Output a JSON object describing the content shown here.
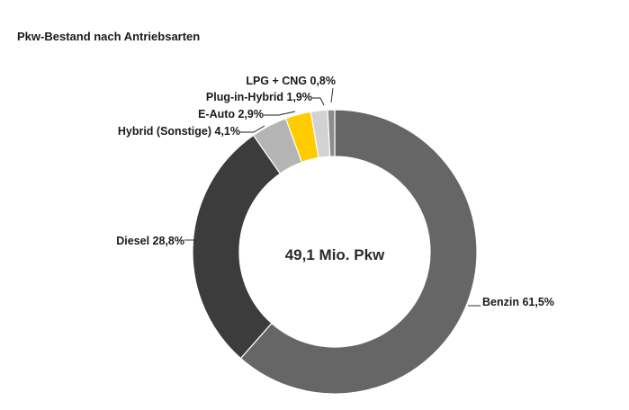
{
  "chart_data": {
    "type": "pie",
    "title": "Pkw-Bestand nach Antriebsarten",
    "center_label": "49,1 Mio. Pkw",
    "series": [
      {
        "name": "Benzin",
        "value": 61.5,
        "label": "Benzin 61,5%",
        "color": "#666666"
      },
      {
        "name": "Diesel",
        "value": 28.8,
        "label": "Diesel 28,8%",
        "color": "#3c3c3c"
      },
      {
        "name": "Hybrid (Sonstige)",
        "value": 4.1,
        "label": "Hybrid (Sonstige) 4,1%",
        "color": "#b4b4b4"
      },
      {
        "name": "E-Auto",
        "value": 2.9,
        "label": "E-Auto 2,9%",
        "color": "#ffcc00"
      },
      {
        "name": "Plug-in-Hybrid",
        "value": 1.9,
        "label": "Plug-in-Hybrid 1,9%",
        "color": "#d2d2d2"
      },
      {
        "name": "LPG + CNG",
        "value": 0.8,
        "label": "LPG + CNG 0,8%",
        "color": "#8c8c8c"
      }
    ]
  }
}
